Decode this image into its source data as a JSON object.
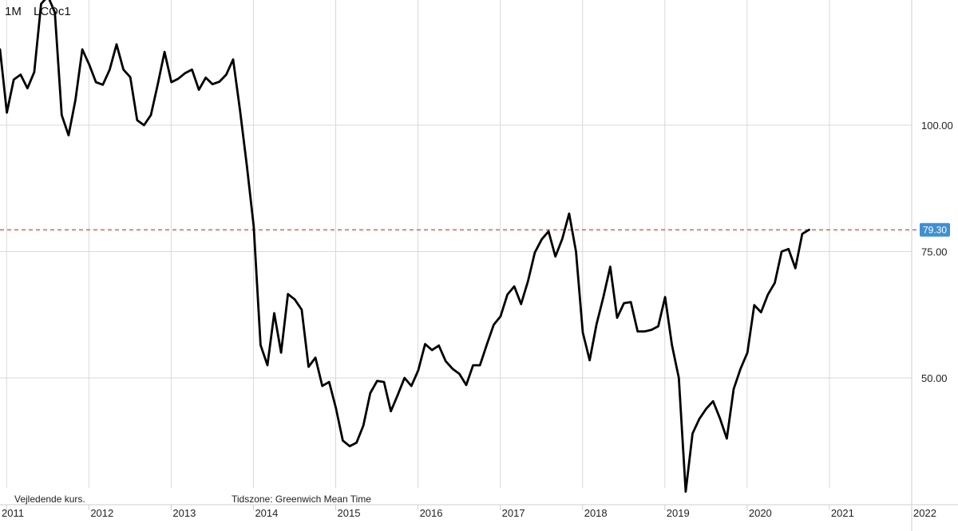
{
  "header": {
    "interval": "1M",
    "symbol": "LCOc1"
  },
  "footer": {
    "note_left": "Vejledende kurs.",
    "timezone": "Tidszone: Greenwich Mean Time"
  },
  "current_price": {
    "label": "79.30",
    "value": 79.3,
    "badge_color": "#3f8fd1",
    "line_color": "#d9443f"
  },
  "chart_data": {
    "type": "line",
    "title": "",
    "xlabel": "",
    "ylabel": "",
    "x_start": 2010.92,
    "x_step": 0.08333,
    "xlim": [
      2010.92,
      2022.0
    ],
    "ylim": [
      27,
      128
    ],
    "yticks": [
      {
        "value": 100,
        "label": "100.00"
      },
      {
        "value": 75,
        "label": "75.00"
      },
      {
        "value": 50,
        "label": "50.00"
      }
    ],
    "xticks": [
      {
        "value": 2011,
        "label": "2011"
      },
      {
        "value": 2012,
        "label": "2012"
      },
      {
        "value": 2013,
        "label": "2013"
      },
      {
        "value": 2014,
        "label": "2014"
      },
      {
        "value": 2015,
        "label": "2015"
      },
      {
        "value": 2016,
        "label": "2016"
      },
      {
        "value": 2017,
        "label": "2017"
      },
      {
        "value": 2018,
        "label": "2018"
      },
      {
        "value": 2019,
        "label": "2019"
      },
      {
        "value": 2020,
        "label": "2020"
      },
      {
        "value": 2021,
        "label": "2021"
      },
      {
        "value": 2022,
        "label": "2022"
      }
    ],
    "grid": true,
    "line_color": "#000000",
    "series": [
      {
        "values": [
          115.0,
          102.5,
          109.0,
          110.0,
          107.3,
          110.5,
          124.0,
          125.5,
          122.3,
          102.0,
          98.0,
          105.0,
          115.0,
          112.0,
          108.5,
          108.0,
          111.0,
          116.0,
          111.0,
          109.5,
          101.0,
          100.0,
          102.0,
          108.0,
          114.5,
          108.5,
          109.2,
          110.3,
          111.0,
          107.0,
          109.4,
          108.1,
          108.6,
          110.0,
          113.0,
          103.0,
          92.0,
          80.0,
          56.5,
          52.5,
          62.8,
          55.0,
          66.6,
          65.5,
          63.5,
          52.2,
          54.0,
          48.4,
          49.2,
          44.0,
          37.6,
          36.5,
          37.2,
          40.6,
          47.0,
          49.4,
          49.2,
          43.4,
          46.6,
          50.0,
          48.4,
          51.5,
          56.7,
          55.5,
          56.4,
          53.3,
          51.8,
          50.8,
          48.6,
          52.5,
          52.5,
          56.6,
          60.5,
          62.2,
          66.5,
          68.1,
          64.6,
          69.1,
          74.8,
          77.4,
          79.0,
          74.0,
          77.5,
          82.5,
          75.0,
          59.0,
          53.5,
          60.6,
          66.0,
          72.0,
          61.9,
          64.8,
          65.0,
          59.2,
          59.2,
          59.5,
          60.2,
          66.0,
          56.5,
          50.0,
          27.5,
          39.0,
          41.9,
          43.9,
          45.4,
          42.0,
          38.0,
          47.8,
          51.8,
          55.0,
          64.4,
          63.0,
          66.5,
          68.8,
          75.0,
          75.5,
          71.7,
          78.5,
          79.3
        ]
      }
    ]
  }
}
